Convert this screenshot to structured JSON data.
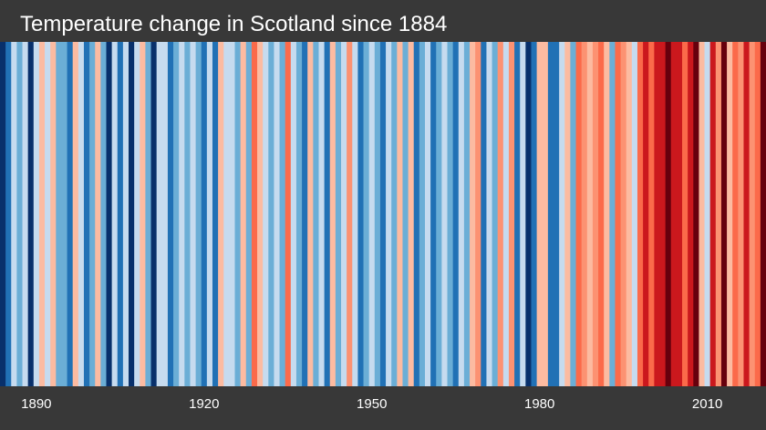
{
  "chart_data": {
    "type": "heatmap",
    "title": "Temperature change in Scotland since 1884",
    "x_start": 1884,
    "x_end": 2020,
    "x": [
      1884,
      1885,
      1886,
      1887,
      1888,
      1889,
      1890,
      1891,
      1892,
      1893,
      1894,
      1895,
      1896,
      1897,
      1898,
      1899,
      1900,
      1901,
      1902,
      1903,
      1904,
      1905,
      1906,
      1907,
      1908,
      1909,
      1910,
      1911,
      1912,
      1913,
      1914,
      1915,
      1916,
      1917,
      1918,
      1919,
      1920,
      1921,
      1922,
      1923,
      1924,
      1925,
      1926,
      1927,
      1928,
      1929,
      1930,
      1931,
      1932,
      1933,
      1934,
      1935,
      1936,
      1937,
      1938,
      1939,
      1940,
      1941,
      1942,
      1943,
      1944,
      1945,
      1946,
      1947,
      1948,
      1949,
      1950,
      1951,
      1952,
      1953,
      1954,
      1955,
      1956,
      1957,
      1958,
      1959,
      1960,
      1961,
      1962,
      1963,
      1964,
      1965,
      1966,
      1967,
      1968,
      1969,
      1970,
      1971,
      1972,
      1973,
      1974,
      1975,
      1976,
      1977,
      1978,
      1979,
      1980,
      1981,
      1982,
      1983,
      1984,
      1985,
      1986,
      1987,
      1988,
      1989,
      1990,
      1991,
      1992,
      1993,
      1994,
      1995,
      1996,
      1997,
      1998,
      1999,
      2000,
      2001,
      2002,
      2003,
      2004,
      2005,
      2006,
      2007,
      2008,
      2009,
      2010,
      2011,
      2012,
      2013,
      2014,
      2015,
      2016,
      2017,
      2018,
      2019,
      2020
    ],
    "anomaly_level": [
      -4,
      -3,
      -1,
      -2,
      -1,
      -4,
      -1,
      1,
      -1,
      1,
      -2,
      -2,
      -3,
      1,
      -1,
      -3,
      -2,
      1,
      -2,
      -4,
      -1,
      -3,
      -1,
      -4,
      -1,
      1,
      -2,
      -4,
      -1,
      -1,
      -3,
      -2,
      -1,
      -2,
      -1,
      -2,
      -3,
      -1,
      -3,
      1,
      -1,
      -1,
      -2,
      1,
      -2,
      3,
      1,
      -1,
      -2,
      -1,
      -2,
      3,
      -1,
      -2,
      -3,
      1,
      -2,
      -1,
      -3,
      1,
      -2,
      -1,
      2,
      -1,
      -3,
      -2,
      -1,
      -2,
      -3,
      -1,
      -2,
      1,
      -2,
      1,
      -3,
      -2,
      -1,
      -3,
      -2,
      -1,
      -2,
      -3,
      -1,
      -2,
      1,
      2,
      -3,
      -1,
      -2,
      2,
      -1,
      2,
      -3,
      -1,
      -4,
      -3,
      1,
      1,
      -3,
      -3,
      -1,
      1,
      -2,
      3,
      2,
      1,
      2,
      3,
      1,
      -2,
      3,
      2,
      1,
      -1,
      3,
      4,
      3,
      4,
      4,
      5,
      4,
      4,
      3,
      4,
      5,
      1,
      -1,
      4,
      2,
      5,
      1,
      3,
      2,
      4,
      2,
      3,
      5
    ],
    "colors": {
      "-4": "#08306b",
      "-3": "#2171b5",
      "-2": "#6baed6",
      "-1": "#c6dbef",
      "1": "#fcbba1",
      "2": "#fc9272",
      "3": "#fb6a4a",
      "4": "#cb181d",
      "5": "#67000d"
    },
    "tick_labels": [
      "1890",
      "1920",
      "1950",
      "1980",
      "2010"
    ],
    "tick_values": [
      1890,
      1920,
      1950,
      1980,
      2010
    ]
  }
}
